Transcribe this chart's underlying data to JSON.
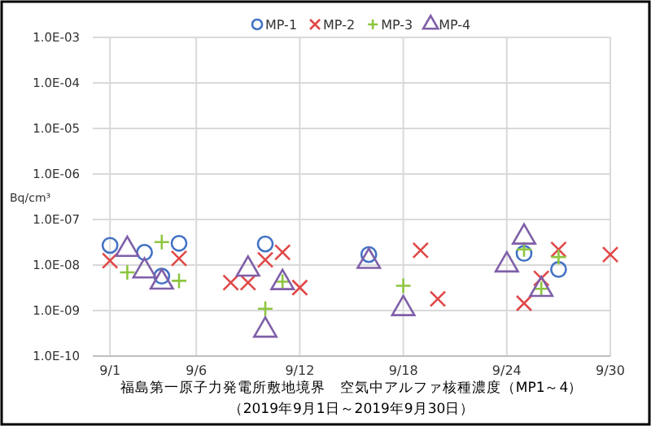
{
  "chart_data": {
    "type": "scatter",
    "title": "福島第一原子力発電所敷地境界　空気中アルファ核種濃度（MP1～4）",
    "subtitle": "（2019年9月1日～2019年9月30日）",
    "ylabel": "Bq/cm³",
    "log": true,
    "grid": true,
    "legend": "top right",
    "xlim": [
      "--08-31",
      "--09-30"
    ],
    "xticks": [
      {
        "value": "--09-01",
        "label": "9/1"
      },
      {
        "value": "--09-06",
        "label": "9/6"
      },
      {
        "value": "--09-12",
        "label": "9/12"
      },
      {
        "value": "--09-18",
        "label": "9/18"
      },
      {
        "value": "--09-24",
        "label": "9/24"
      },
      {
        "value": "--09-30",
        "label": "9/30"
      }
    ],
    "ylim": [
      1e-10,
      0.001
    ],
    "yticks": [
      {
        "value": 1e-10,
        "label": "1.0E-10"
      },
      {
        "value": 1e-09,
        "label": "1.0E-09"
      },
      {
        "value": 1e-08,
        "label": "1.0E-08"
      },
      {
        "value": 1e-07,
        "label": "1.0E-07"
      },
      {
        "value": 1e-06,
        "label": "1.0E-06"
      },
      {
        "value": 1e-05,
        "label": "1.0E-05"
      },
      {
        "value": 0.0001,
        "label": "1.0E-04"
      },
      {
        "value": 0.001,
        "label": "1.0E-03"
      }
    ],
    "series": [
      {
        "name": "MP-1",
        "color": "#4472c4",
        "marker": "circle",
        "x": [
          "--09-01",
          "--09-03",
          "--09-04",
          "--09-05",
          "--09-10",
          "--09-16",
          "--09-25",
          "--09-27"
        ],
        "values": [
          2.7e-08,
          1.9e-08,
          5.7e-09,
          3e-08,
          2.9e-08,
          1.7e-08,
          1.8e-08,
          8e-09
        ]
      },
      {
        "name": "MP-2",
        "color": "#e04848",
        "marker": "cross",
        "x": [
          "--09-01",
          "--09-05",
          "--09-08",
          "--09-09",
          "--09-10",
          "--09-11",
          "--09-12",
          "--09-19",
          "--09-20",
          "--09-25",
          "--09-26",
          "--09-27",
          "--09-30"
        ],
        "values": [
          1.25e-08,
          1.4e-08,
          4.1e-09,
          4.1e-09,
          1.3e-08,
          1.9e-08,
          3.2e-09,
          2.1e-08,
          1.8e-09,
          1.45e-09,
          5.1e-09,
          2.2e-08,
          1.7e-08
        ]
      },
      {
        "name": "MP-3",
        "color": "#8dc63f",
        "marker": "plus",
        "x": [
          "--09-02",
          "--09-04",
          "--09-05",
          "--09-10",
          "--09-11",
          "--09-18",
          "--09-25",
          "--09-26",
          "--09-27"
        ],
        "values": [
          6.9e-09,
          3.2e-08,
          4.5e-09,
          1.1e-09,
          4.3e-09,
          3.5e-09,
          2.2e-08,
          3e-09,
          1.5e-08
        ]
      },
      {
        "name": "MP-4",
        "color": "#7f5fa8",
        "marker": "triangle",
        "x": [
          "--09-02",
          "--09-03",
          "--09-04",
          "--09-09",
          "--09-10",
          "--09-11",
          "--09-16",
          "--09-18",
          "--09-24",
          "--09-25",
          "--09-26"
        ],
        "values": [
          2.2e-08,
          7.4e-09,
          4.2e-09,
          8.1e-09,
          3.7e-10,
          4.1e-09,
          1.2e-08,
          1.1e-09,
          1e-08,
          4.1e-08,
          2.9e-09
        ]
      }
    ]
  }
}
